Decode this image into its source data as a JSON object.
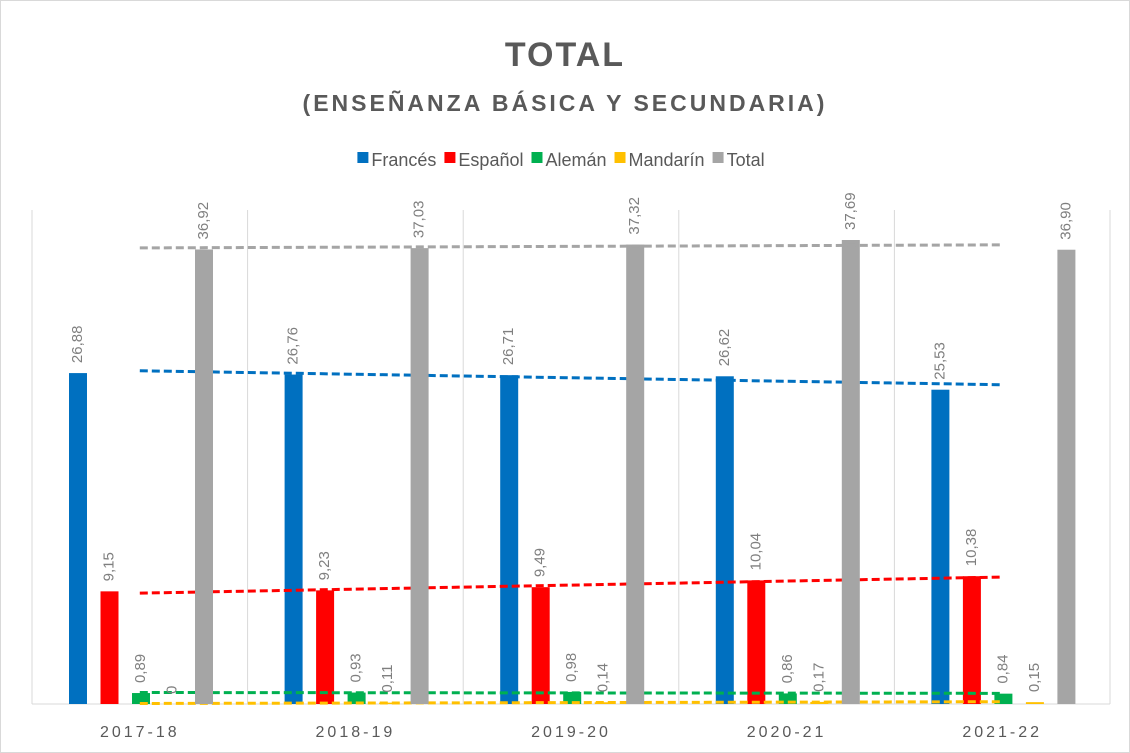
{
  "chart_data": {
    "type": "bar",
    "title": "TOTAL",
    "subtitle": "(ENSEÑANZA BÁSICA Y SECUNDARIA)",
    "categories": [
      "2017-18",
      "2018-19",
      "2019-20",
      "2020-21",
      "2021-22"
    ],
    "series": [
      {
        "name": "Francés",
        "color": "#0070c0",
        "values": [
          26.88,
          26.76,
          26.71,
          26.62,
          25.53
        ],
        "value_labels": [
          "26,88",
          "26,76",
          "26,71",
          "26,62",
          "25,53"
        ]
      },
      {
        "name": "Español",
        "color": "#ff0000",
        "values": [
          9.15,
          9.23,
          9.49,
          10.04,
          10.38
        ],
        "value_labels": [
          "9,15",
          "9,23",
          "9,49",
          "10,04",
          "10,38"
        ]
      },
      {
        "name": "Alemán",
        "color": "#00b050",
        "values": [
          0.89,
          0.93,
          0.98,
          0.86,
          0.84
        ],
        "value_labels": [
          "0,89",
          "0,93",
          "0,98",
          "0,86",
          "0,84"
        ]
      },
      {
        "name": "Mandarín",
        "color": "#ffc000",
        "values": [
          0,
          0.11,
          0.14,
          0.17,
          0.15
        ],
        "value_labels": [
          "0",
          "0,11",
          "0,14",
          "0,17",
          "0,15"
        ]
      },
      {
        "name": "Total",
        "color": "#a5a5a5",
        "values": [
          36.92,
          37.03,
          37.32,
          37.69,
          36.9
        ],
        "value_labels": [
          "36,92",
          "37,03",
          "37,32",
          "37,69",
          "36,90"
        ]
      }
    ],
    "trendline": true,
    "legend": "top"
  }
}
